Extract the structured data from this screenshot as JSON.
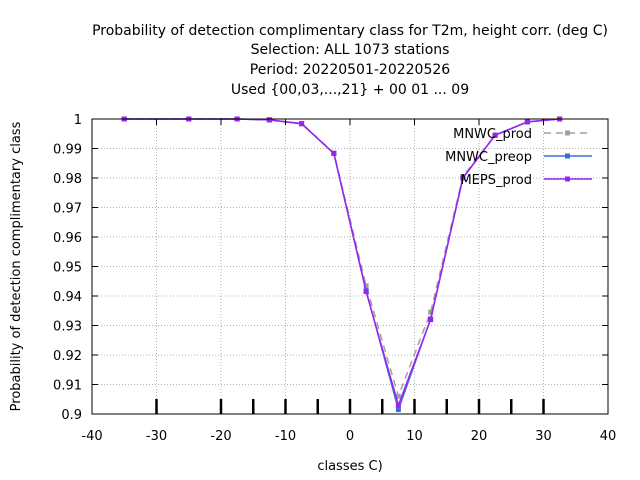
{
  "chart_data": {
    "type": "line",
    "title_lines": [
      "Probability of detection complimentary class  for T2m, height corr. (deg C)",
      "Selection: ALL    1073 stations",
      "Period: 20220501-20220526",
      "Used {00,03,...,21} + 00 01 ... 09"
    ],
    "xlabel": "classes C)",
    "ylabel": "Probability of detection complimentary class",
    "xlim": [
      -40,
      40
    ],
    "ylim": [
      0.9,
      1.0
    ],
    "xticks": [
      -40,
      -30,
      -20,
      -10,
      0,
      10,
      20,
      30,
      40
    ],
    "yticks": [
      0.9,
      0.91,
      0.92,
      0.93,
      0.94,
      0.95,
      0.96,
      0.97,
      0.98,
      0.99,
      1
    ],
    "ytick_labels": [
      "0.9",
      "0.91",
      "0.92",
      "0.93",
      "0.94",
      "0.95",
      "0.96",
      "0.97",
      "0.98",
      "0.99",
      "1"
    ],
    "grid": true,
    "legend_position": "top-right",
    "class_boundaries": [
      -30,
      -20,
      -15,
      -10,
      -5,
      0,
      5,
      10,
      15,
      20,
      25,
      30
    ],
    "x": [
      -35,
      -25,
      -17.5,
      -12.5,
      -7.5,
      -2.5,
      2.5,
      7.5,
      12.5,
      17.5,
      22.5,
      27.5,
      32.5
    ],
    "series": [
      {
        "name": "MNWC_prod",
        "color": "#a0a0a0",
        "dash": "dashed",
        "marker": "square",
        "values": [
          1.0,
          1.0,
          1.0,
          0.9997,
          0.9985,
          0.9885,
          0.9435,
          0.906,
          0.9345,
          0.9805,
          0.9945,
          0.999,
          1.0
        ]
      },
      {
        "name": "MNWC_preop",
        "color": "#3a6fd8",
        "dash": "solid",
        "marker": "square",
        "values": [
          1.0,
          1.0,
          1.0,
          0.9997,
          0.9984,
          0.9883,
          0.9418,
          0.9015,
          0.9322,
          0.98,
          0.9945,
          0.999,
          1.0
        ]
      },
      {
        "name": "MEPS_prod",
        "color": "#a020f0",
        "dash": "solid",
        "marker": "square",
        "values": [
          1.0,
          1.0,
          1.0,
          0.9997,
          0.9984,
          0.9883,
          0.9415,
          0.903,
          0.932,
          0.98,
          0.9945,
          0.999,
          1.0
        ]
      }
    ]
  }
}
